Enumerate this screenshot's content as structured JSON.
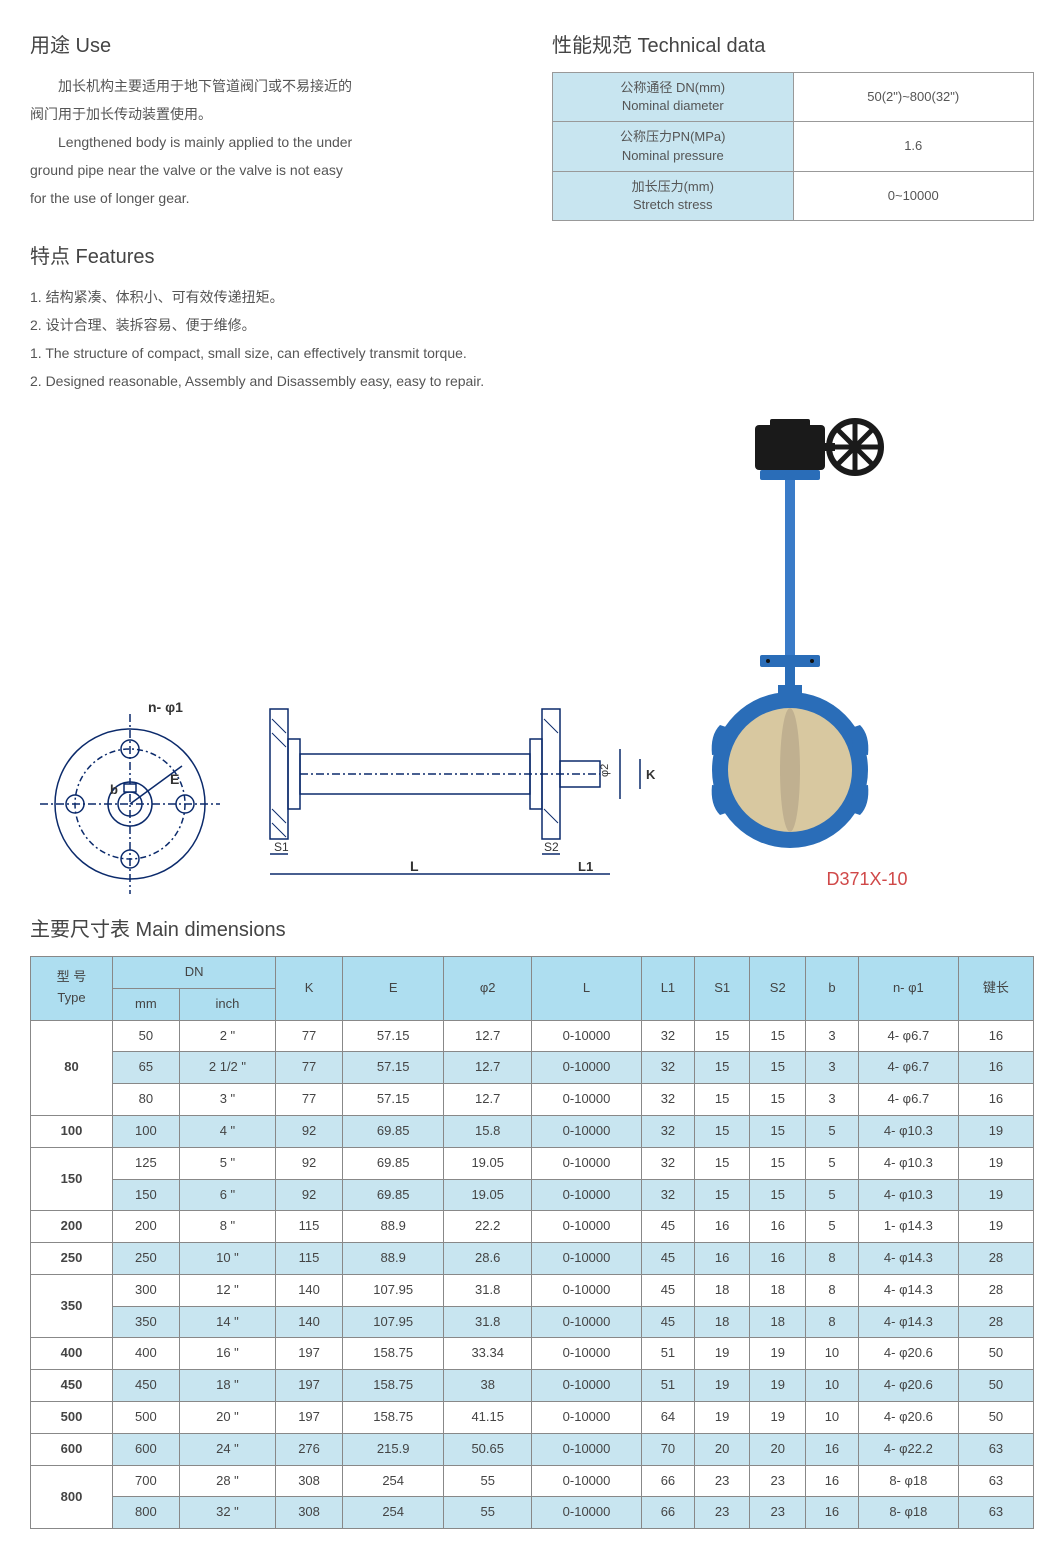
{
  "use": {
    "title": "用途 Use",
    "cn1": "加长机构主要适用于地下管道阀门或不易接近的",
    "cn2": "阀门用于加长传动装置使用。",
    "en1": "Lengthened body is mainly applied to the under",
    "en2": "ground pipe near the valve or the valve is not easy",
    "en3": "for the use of longer gear."
  },
  "tech": {
    "title": "性能规范 Technical data",
    "rows": [
      {
        "label_cn": "公称通径 DN(mm)",
        "label_en": "Nominal diameter",
        "value": "50(2\")~800(32\")"
      },
      {
        "label_cn": "公称压力PN(MPa)",
        "label_en": "Nominal pressure",
        "value": "1.6"
      },
      {
        "label_cn": "加长压力(mm)",
        "label_en": "Stretch stress",
        "value": "0~10000"
      }
    ],
    "label_bg": "#c8e5f0",
    "border": "#999999"
  },
  "features": {
    "title": "特点 Features",
    "lines": [
      "1.  结构紧凑、体积小、可有效传递扭矩。",
      "2.  设计合理、装拆容易、便于维修。",
      "1. The structure of compact, small size, can effectively transmit torque.",
      "2. Designed reasonable, Assembly and Disassembly easy, easy to repair."
    ]
  },
  "drawing": {
    "labels": {
      "n_phi1": "n- φ1",
      "b": "b",
      "E": "E",
      "S1": "S1",
      "S2": "S2",
      "L": "L",
      "L1": "L1",
      "K": "K",
      "phi2": "φ2"
    },
    "stroke": "#0b2a6b",
    "fill": "#ffffff"
  },
  "product": {
    "label": "D371X-10",
    "body_color": "#2a6db8",
    "gear_color": "#1a1a1a",
    "disc_color": "#d8c8a0",
    "stem_color": "#3a7bc8"
  },
  "dimensions": {
    "title": "主要尺寸表 Main dimensions",
    "header_bg": "#aedef0",
    "alt_bg": "#c8e5f0",
    "border": "#888888",
    "headers": {
      "type": "型 号\nType",
      "dn": "DN",
      "mm": "mm",
      "inch": "inch",
      "K": "K",
      "E": "E",
      "phi2": "φ2",
      "L": "L",
      "L1": "L1",
      "S1": "S1",
      "S2": "S2",
      "b": "b",
      "n_phi1": "n- φ1",
      "key": "键长"
    },
    "groups": [
      {
        "type": "80",
        "rows": [
          {
            "mm": "50",
            "inch": "2 \"",
            "K": "77",
            "E": "57.15",
            "phi2": "12.7",
            "L": "0-10000",
            "L1": "32",
            "S1": "15",
            "S2": "15",
            "b": "3",
            "n_phi1": "4- φ6.7",
            "key": "16",
            "alt": false
          },
          {
            "mm": "65",
            "inch": "2 1/2 \"",
            "K": "77",
            "E": "57.15",
            "phi2": "12.7",
            "L": "0-10000",
            "L1": "32",
            "S1": "15",
            "S2": "15",
            "b": "3",
            "n_phi1": "4- φ6.7",
            "key": "16",
            "alt": true
          },
          {
            "mm": "80",
            "inch": "3 \"",
            "K": "77",
            "E": "57.15",
            "phi2": "12.7",
            "L": "0-10000",
            "L1": "32",
            "S1": "15",
            "S2": "15",
            "b": "3",
            "n_phi1": "4- φ6.7",
            "key": "16",
            "alt": false
          }
        ]
      },
      {
        "type": "100",
        "rows": [
          {
            "mm": "100",
            "inch": "4 \"",
            "K": "92",
            "E": "69.85",
            "phi2": "15.8",
            "L": "0-10000",
            "L1": "32",
            "S1": "15",
            "S2": "15",
            "b": "5",
            "n_phi1": "4- φ10.3",
            "key": "19",
            "alt": true
          }
        ]
      },
      {
        "type": "150",
        "rows": [
          {
            "mm": "125",
            "inch": "5 \"",
            "K": "92",
            "E": "69.85",
            "phi2": "19.05",
            "L": "0-10000",
            "L1": "32",
            "S1": "15",
            "S2": "15",
            "b": "5",
            "n_phi1": "4- φ10.3",
            "key": "19",
            "alt": false
          },
          {
            "mm": "150",
            "inch": "6 \"",
            "K": "92",
            "E": "69.85",
            "phi2": "19.05",
            "L": "0-10000",
            "L1": "32",
            "S1": "15",
            "S2": "15",
            "b": "5",
            "n_phi1": "4- φ10.3",
            "key": "19",
            "alt": true
          }
        ]
      },
      {
        "type": "200",
        "rows": [
          {
            "mm": "200",
            "inch": "8 \"",
            "K": "115",
            "E": "88.9",
            "phi2": "22.2",
            "L": "0-10000",
            "L1": "45",
            "S1": "16",
            "S2": "16",
            "b": "5",
            "n_phi1": "1- φ14.3",
            "key": "19",
            "alt": false
          }
        ]
      },
      {
        "type": "250",
        "rows": [
          {
            "mm": "250",
            "inch": "10 \"",
            "K": "115",
            "E": "88.9",
            "phi2": "28.6",
            "L": "0-10000",
            "L1": "45",
            "S1": "16",
            "S2": "16",
            "b": "8",
            "n_phi1": "4- φ14.3",
            "key": "28",
            "alt": true
          }
        ]
      },
      {
        "type": "350",
        "rows": [
          {
            "mm": "300",
            "inch": "12 \"",
            "K": "140",
            "E": "107.95",
            "phi2": "31.8",
            "L": "0-10000",
            "L1": "45",
            "S1": "18",
            "S2": "18",
            "b": "8",
            "n_phi1": "4- φ14.3",
            "key": "28",
            "alt": false
          },
          {
            "mm": "350",
            "inch": "14 \"",
            "K": "140",
            "E": "107.95",
            "phi2": "31.8",
            "L": "0-10000",
            "L1": "45",
            "S1": "18",
            "S2": "18",
            "b": "8",
            "n_phi1": "4- φ14.3",
            "key": "28",
            "alt": true
          }
        ]
      },
      {
        "type": "400",
        "rows": [
          {
            "mm": "400",
            "inch": "16 \"",
            "K": "197",
            "E": "158.75",
            "phi2": "33.34",
            "L": "0-10000",
            "L1": "51",
            "S1": "19",
            "S2": "19",
            "b": "10",
            "n_phi1": "4- φ20.6",
            "key": "50",
            "alt": false
          }
        ]
      },
      {
        "type": "450",
        "rows": [
          {
            "mm": "450",
            "inch": "18 \"",
            "K": "197",
            "E": "158.75",
            "phi2": "38",
            "L": "0-10000",
            "L1": "51",
            "S1": "19",
            "S2": "19",
            "b": "10",
            "n_phi1": "4- φ20.6",
            "key": "50",
            "alt": true
          }
        ]
      },
      {
        "type": "500",
        "rows": [
          {
            "mm": "500",
            "inch": "20 \"",
            "K": "197",
            "E": "158.75",
            "phi2": "41.15",
            "L": "0-10000",
            "L1": "64",
            "S1": "19",
            "S2": "19",
            "b": "10",
            "n_phi1": "4- φ20.6",
            "key": "50",
            "alt": false
          }
        ]
      },
      {
        "type": "600",
        "rows": [
          {
            "mm": "600",
            "inch": "24 \"",
            "K": "276",
            "E": "215.9",
            "phi2": "50.65",
            "L": "0-10000",
            "L1": "70",
            "S1": "20",
            "S2": "20",
            "b": "16",
            "n_phi1": "4- φ22.2",
            "key": "63",
            "alt": true
          }
        ]
      },
      {
        "type": "800",
        "rows": [
          {
            "mm": "700",
            "inch": "28 \"",
            "K": "308",
            "E": "254",
            "phi2": "55",
            "L": "0-10000",
            "L1": "66",
            "S1": "23",
            "S2": "23",
            "b": "16",
            "n_phi1": "8- φ18",
            "key": "63",
            "alt": false
          },
          {
            "mm": "800",
            "inch": "32 \"",
            "K": "308",
            "E": "254",
            "phi2": "55",
            "L": "0-10000",
            "L1": "66",
            "S1": "23",
            "S2": "23",
            "b": "16",
            "n_phi1": "8- φ18",
            "key": "63",
            "alt": true
          }
        ]
      }
    ]
  }
}
